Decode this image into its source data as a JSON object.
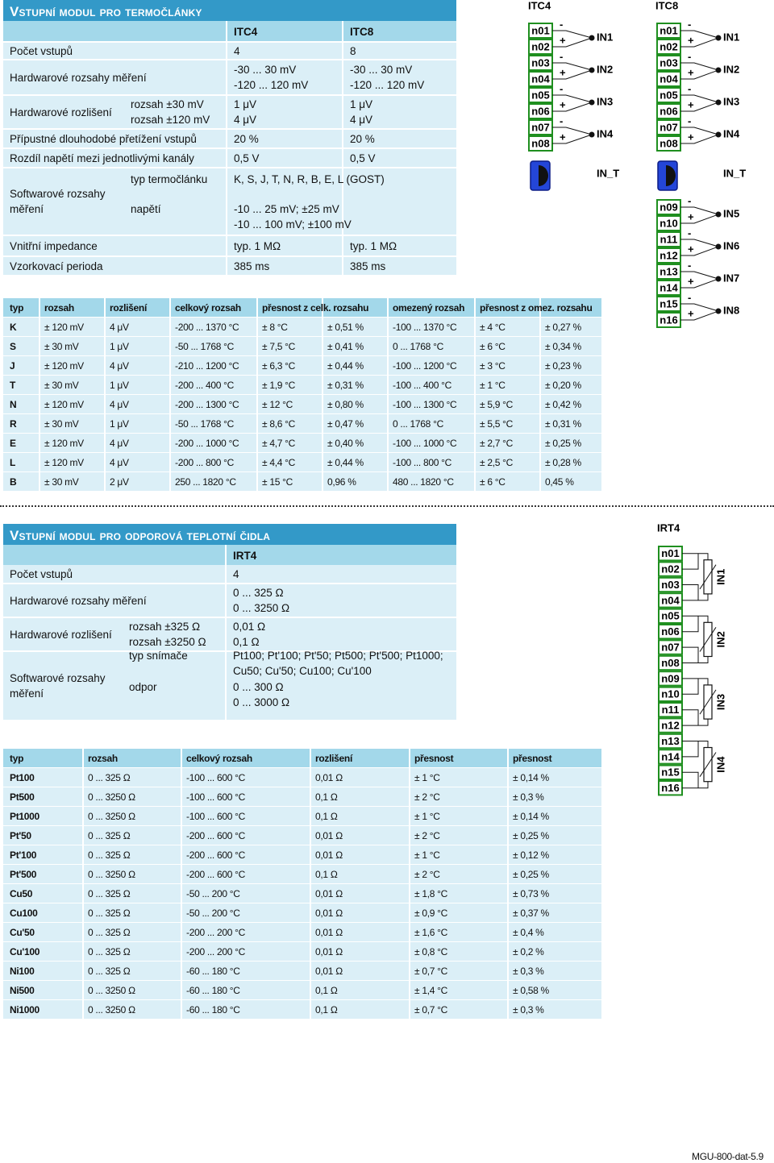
{
  "thermocouple_module": {
    "title": "Vstupní modul pro termočlánky",
    "spec": {
      "columns": [
        "ITC4",
        "ITC8"
      ],
      "rows": [
        {
          "label": [
            "Počet vstupů"
          ],
          "values": [
            [
              "4"
            ],
            [
              "8"
            ]
          ]
        },
        {
          "label": [
            "Hardwarové rozsahy měření"
          ],
          "values": [
            [
              "-30 ... 30 mV",
              "-120 ... 120 mV"
            ],
            [
              "-30 ... 30 mV",
              "-120 ... 120 mV"
            ]
          ]
        },
        {
          "label": [
            "Hardwarové rozlišení"
          ],
          "sub": [
            "rozsah ±30 mV",
            "rozsah ±120 mV"
          ],
          "values": [
            [
              "1 μV",
              "4 μV"
            ],
            [
              "1 μV",
              "4 μV"
            ]
          ]
        },
        {
          "label": [
            "Přípustné dlouhodobé přetížení vstupů"
          ],
          "values": [
            [
              "20 %"
            ],
            [
              "20 %"
            ]
          ]
        },
        {
          "label": [
            "Rozdíl napětí mezi jednotlivými kanály"
          ],
          "values": [
            [
              "0,5 V"
            ],
            [
              "0,5 V"
            ]
          ]
        },
        {
          "label": [
            "Softwarové rozsahy",
            "měření"
          ],
          "parts": [
            {
              "sub": [
                "typ termočlánku"
              ],
              "values": [
                [
                  "K, S, J, T, N, R, B, E, L (GOST)"
                ]
              ]
            },
            {
              "sub": [
                "napětí"
              ],
              "values": [
                [
                  "-10 ... 25 mV; ±25 mV",
                  "-10 ... 100 mV; ±100 mV"
                ]
              ]
            }
          ]
        },
        {
          "label": [
            "Vnitřní impedance"
          ],
          "values": [
            [
              "typ. 1 MΩ"
            ],
            [
              "typ. 1 MΩ"
            ]
          ]
        },
        {
          "label": [
            "Vzorkovací perioda"
          ],
          "values": [
            [
              "385 ms"
            ],
            [
              "385 ms"
            ]
          ]
        }
      ]
    },
    "table": {
      "headers": [
        "typ",
        "rozsah",
        "rozlišení",
        "celkový rozsah",
        "přesnost z celk. rozsahu",
        "omezený rozsah",
        "přesnost z omez. rozsahu"
      ],
      "rows": [
        [
          "K",
          "± 120 mV",
          "4 μV",
          "-200 ... 1370 °C",
          "± 8 °C",
          "± 0,51 %",
          "-100 ... 1370 °C",
          "± 4 °C",
          "± 0,27 %"
        ],
        [
          "S",
          "± 30 mV",
          "1 μV",
          "-50 ... 1768 °C",
          "± 7,5 °C",
          "± 0,41 %",
          "0 ... 1768 °C",
          "± 6 °C",
          "± 0,34 %"
        ],
        [
          "J",
          "± 120 mV",
          "4 μV",
          "-210 ... 1200 °C",
          "± 6,3 °C",
          "± 0,44 %",
          "-100 ... 1200 °C",
          "± 3 °C",
          "± 0,23 %"
        ],
        [
          "T",
          "± 30 mV",
          "1 μV",
          "-200 ... 400 °C",
          "± 1,9 °C",
          "± 0,31 %",
          "-100 ... 400 °C",
          "± 1 °C",
          "± 0,20 %"
        ],
        [
          "N",
          "± 120 mV",
          "4 μV",
          "-200 ... 1300 °C",
          "± 12 °C",
          "± 0,80 %",
          "-100 ... 1300 °C",
          "± 5,9 °C",
          "± 0,42 %"
        ],
        [
          "R",
          "± 30 mV",
          "1 μV",
          "-50 ... 1768 °C",
          "± 8,6 °C",
          "± 0,47 %",
          "0 ... 1768 °C",
          "± 5,5 °C",
          "± 0,31 %"
        ],
        [
          "E",
          "± 120 mV",
          "4 μV",
          "-200 ... 1000 °C",
          "± 4,7 °C",
          "± 0,40 %",
          "-100 ... 1000 °C",
          "± 2,7 °C",
          "± 0,25 %"
        ],
        [
          "L",
          "± 120 mV",
          "4 μV",
          "-200 ... 800 °C",
          "± 4,4 °C",
          "± 0,44 %",
          "-100 ... 800 °C",
          "± 2,5 °C",
          "± 0,28 %"
        ],
        [
          "B",
          "± 30 mV",
          "2 μV",
          "250 ... 1820 °C",
          "± 15 °C",
          "0,96 %",
          "480 ... 1820 °C",
          "± 6 °C",
          "0,45 %"
        ]
      ]
    }
  },
  "rtd_module": {
    "title": "Vstupní modul pro odporová teplotní čidla",
    "spec": {
      "columns": [
        "IRT4"
      ],
      "rows": [
        {
          "label": [
            "Počet vstupů"
          ],
          "values": [
            [
              "4"
            ]
          ]
        },
        {
          "label": [
            "Hardwarové rozsahy měření"
          ],
          "values": [
            [
              "0 ... 325 Ω",
              "0 ... 3250 Ω"
            ]
          ]
        },
        {
          "label": [
            "Hardwarové rozlišení"
          ],
          "sub": [
            "rozsah ±325 Ω",
            "rozsah ±3250 Ω"
          ],
          "values": [
            [
              "0,01 Ω",
              "0,1 Ω"
            ]
          ]
        },
        {
          "label": [
            "Softwarové rozsahy",
            "měření"
          ],
          "parts": [
            {
              "sub": [
                "typ snímače"
              ],
              "values": [
                [
                  "Pt100; Pt'100; Pt'50; Pt500; Pt'500; Pt1000;",
                  "Cu50; Cu'50; Cu100; Cu'100"
                ]
              ]
            },
            {
              "sub": [
                "odpor"
              ],
              "values": [
                [
                  "0 ... 300 Ω",
                  "0 ... 3000 Ω"
                ]
              ]
            }
          ]
        }
      ]
    },
    "table": {
      "headers": [
        "typ",
        "rozsah",
        "celkový rozsah",
        "rozlišení",
        "přesnost",
        "přesnost"
      ],
      "rows": [
        [
          "Pt100",
          "0 ... 325 Ω",
          "-100 ... 600 °C",
          "0,01 Ω",
          "± 1 °C",
          "± 0,14 %"
        ],
        [
          "Pt500",
          "0 ... 3250 Ω",
          "-100 ... 600 °C",
          "0,1 Ω",
          "± 2 °C",
          "± 0,3 %"
        ],
        [
          "Pt1000",
          "0 ... 3250 Ω",
          "-100 ... 600 °C",
          "0,1 Ω",
          "± 1 °C",
          "± 0,14 %"
        ],
        [
          "Pt'50",
          "0 ... 325 Ω",
          "-200 ... 600 °C",
          "0,01 Ω",
          "± 2 °C",
          "± 0,25 %"
        ],
        [
          "Pt'100",
          "0 ... 325 Ω",
          "-200 ... 600 °C",
          "0,01 Ω",
          "± 1 °C",
          "± 0,12 %"
        ],
        [
          "Pt'500",
          "0 ... 3250 Ω",
          "-200 ... 600 °C",
          "0,1 Ω",
          "± 2 °C",
          "± 0,25 %"
        ],
        [
          "Cu50",
          "0 ... 325 Ω",
          "-50 ... 200 °C",
          "0,01 Ω",
          "± 1,8 °C",
          "± 0,73 %"
        ],
        [
          "Cu100",
          "0 ... 325 Ω",
          "-50 ... 200 °C",
          "0,01 Ω",
          "± 0,9 °C",
          "± 0,37 %"
        ],
        [
          "Cu'50",
          "0 ... 325 Ω",
          "-200 ... 200 °C",
          "0,01 Ω",
          "± 1,6 °C",
          "± 0,4 %"
        ],
        [
          "Cu'100",
          "0 ... 325 Ω",
          "-200 ... 200 °C",
          "0,01 Ω",
          "± 0,8 °C",
          "± 0,2 %"
        ],
        [
          "Ni100",
          "0 ... 325 Ω",
          "-60 ... 180 °C",
          "0,01 Ω",
          "± 0,7 °C",
          "± 0,3 %"
        ],
        [
          "Ni500",
          "0 ... 3250 Ω",
          "-60 ... 180 °C",
          "0,1 Ω",
          "± 1,4 °C",
          "± 0,58 %"
        ],
        [
          "Ni1000",
          "0 ... 3250 Ω",
          "-60 ... 180 °C",
          "0,1 Ω",
          "± 0,7 °C",
          "± 0,3 %"
        ]
      ]
    }
  },
  "polarity": {
    "minus": "-",
    "plus": "+"
  },
  "diagrams": {
    "itc4": {
      "title": "ITC4",
      "terminals": [
        "n01",
        "n02",
        "n03",
        "n04",
        "n05",
        "n06",
        "n07",
        "n08"
      ],
      "inputs": [
        "IN1",
        "IN2",
        "IN3",
        "IN4"
      ],
      "temp_input": "IN_T"
    },
    "itc8": {
      "title": "ITC8",
      "terminals": [
        "n01",
        "n02",
        "n03",
        "n04",
        "n05",
        "n06",
        "n07",
        "n08",
        "n09",
        "n10",
        "n11",
        "n12",
        "n13",
        "n14",
        "n15",
        "n16"
      ],
      "inputs": [
        "IN1",
        "IN2",
        "IN3",
        "IN4",
        "IN5",
        "IN6",
        "IN7",
        "IN8"
      ],
      "temp_input": "IN_T"
    },
    "irt4": {
      "title": "IRT4",
      "terminals": [
        "n01",
        "n02",
        "n03",
        "n04",
        "n05",
        "n06",
        "n07",
        "n08",
        "n09",
        "n10",
        "n11",
        "n12",
        "n13",
        "n14",
        "n15",
        "n16"
      ],
      "inputs": [
        "IN1",
        "IN2",
        "IN3",
        "IN4"
      ]
    }
  },
  "footer": "MGU-800-dat-5.9"
}
